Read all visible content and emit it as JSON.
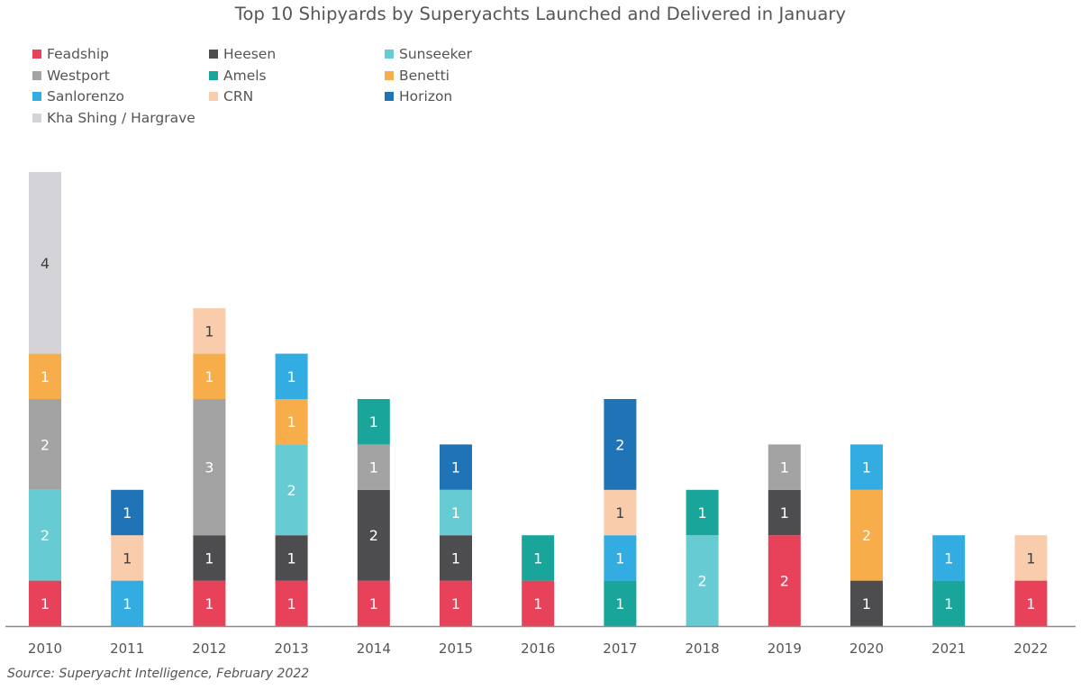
{
  "chart_data": {
    "type": "bar",
    "stacked": true,
    "title": "Top 10 Shipyards by Superyachts Launched and Delivered in January",
    "xlabel": "",
    "ylabel": "",
    "ylim": [
      0,
      10
    ],
    "grid": false,
    "legend_position": "top-left",
    "categories": [
      "2010",
      "2011",
      "2012",
      "2013",
      "2014",
      "2015",
      "2016",
      "2017",
      "2018",
      "2019",
      "2020",
      "2021",
      "2022"
    ],
    "series": [
      {
        "name": "Feadship",
        "color": "#e8415a",
        "values": [
          1,
          0,
          1,
          1,
          1,
          1,
          1,
          0,
          0,
          2,
          0,
          0,
          1
        ]
      },
      {
        "name": "Heesen",
        "color": "#4d4d4f",
        "values": [
          0,
          0,
          1,
          1,
          2,
          1,
          0,
          0,
          0,
          1,
          1,
          0,
          0
        ]
      },
      {
        "name": "Sunseeker",
        "color": "#67cbd3",
        "values": [
          2,
          0,
          0,
          2,
          0,
          1,
          0,
          0,
          2,
          0,
          0,
          0,
          0
        ]
      },
      {
        "name": "Westport",
        "color": "#a3a3a3",
        "values": [
          2,
          0,
          3,
          0,
          1,
          0,
          0,
          0,
          0,
          1,
          0,
          0,
          0
        ]
      },
      {
        "name": "Amels",
        "color": "#1aa59a",
        "values": [
          0,
          0,
          0,
          0,
          1,
          0,
          1,
          1,
          1,
          0,
          0,
          1,
          0
        ]
      },
      {
        "name": "Benetti",
        "color": "#f6ad4a",
        "values": [
          1,
          0,
          1,
          1,
          0,
          0,
          0,
          0,
          0,
          0,
          2,
          0,
          0
        ]
      },
      {
        "name": "Sanlorenzo",
        "color": "#33ace1",
        "values": [
          0,
          1,
          0,
          1,
          0,
          0,
          0,
          1,
          0,
          0,
          1,
          1,
          0
        ]
      },
      {
        "name": "CRN",
        "color": "#f9ccab",
        "values": [
          0,
          1,
          1,
          0,
          0,
          0,
          0,
          1,
          0,
          0,
          0,
          0,
          1
        ]
      },
      {
        "name": "Horizon",
        "color": "#1f73b7",
        "values": [
          0,
          1,
          0,
          0,
          0,
          1,
          0,
          2,
          0,
          0,
          0,
          0,
          0
        ]
      },
      {
        "name": "Kha Shing / Hargrave",
        "color": "#d4d4d8",
        "values": [
          4,
          0,
          0,
          0,
          0,
          0,
          0,
          0,
          0,
          0,
          0,
          0,
          0
        ]
      }
    ],
    "source": "Source: Superyacht Intelligence, February 2022"
  }
}
